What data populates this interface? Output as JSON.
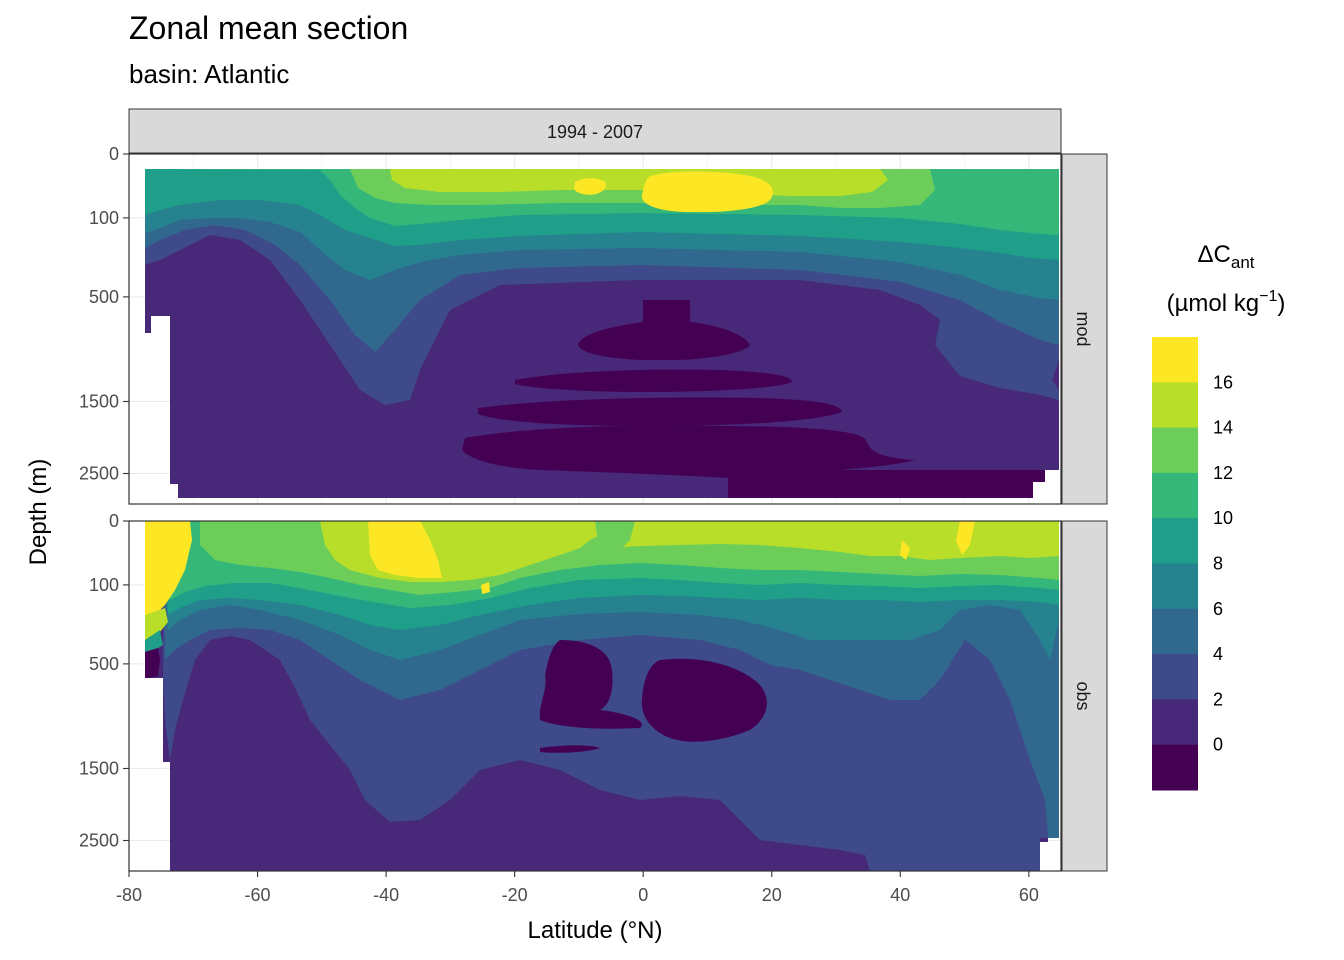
{
  "title": "Zonal mean section",
  "subtitle": "basin: Atlantic",
  "chart_data": {
    "type": "heatmap",
    "facet_column_strip": "1994 - 2007",
    "facet_row_strips": [
      "mod",
      "obs"
    ],
    "xlabel": "Latitude (°N)",
    "ylabel": "Depth (m)",
    "x_ticks": [
      -80,
      -60,
      -40,
      -20,
      0,
      20,
      40,
      60
    ],
    "y_ticks": [
      0,
      100,
      500,
      1500,
      2500
    ],
    "xlim": [
      -80,
      65
    ],
    "ylim": [
      3000,
      0
    ],
    "y_scale": "sqrt (reversed)",
    "grid": true,
    "legend": {
      "position": "right",
      "title_main": "ΔC",
      "title_sub": "ant",
      "title_units": "(µmol kg",
      "title_units_exp": "−1",
      "title_units_close": ")",
      "labels": [
        "16",
        "14",
        "12",
        "10",
        "8",
        "6",
        "4",
        "2",
        "0"
      ],
      "colors": [
        "#FDE725",
        "#B8DE29",
        "#6CCE59",
        "#35B779",
        "#1F9E89",
        "#26828E",
        "#31688E",
        "#3E4A89",
        "#482878",
        "#440154"
      ]
    },
    "panels": [
      {
        "name": "mod",
        "sections": [
          {
            "lat": -77,
            "depths": [
              [
                50,
                10
              ],
              [
                100,
                8
              ],
              [
                200,
                5
              ],
              [
                350,
                3
              ],
              [
                1000,
                2
              ],
              [
                2800,
                2
              ]
            ]
          },
          {
            "lat": -70,
            "depths": [
              [
                50,
                10
              ],
              [
                150,
                8
              ],
              [
                250,
                5
              ],
              [
                400,
                3
              ],
              [
                1500,
                2
              ],
              [
                2800,
                2
              ]
            ]
          },
          {
            "lat": -60,
            "depths": [
              [
                50,
                10
              ],
              [
                120,
                8
              ],
              [
                200,
                5
              ],
              [
                300,
                3
              ],
              [
                1500,
                2
              ],
              [
                2800,
                2
              ]
            ]
          },
          {
            "lat": -50,
            "depths": [
              [
                50,
                12
              ],
              [
                150,
                10
              ],
              [
                250,
                8
              ],
              [
                400,
                5
              ],
              [
                700,
                3
              ],
              [
                2800,
                2
              ]
            ]
          },
          {
            "lat": -40,
            "depths": [
              [
                50,
                14
              ],
              [
                150,
                12
              ],
              [
                300,
                10
              ],
              [
                600,
                8
              ],
              [
                900,
                5
              ],
              [
                1800,
                3
              ],
              [
                2800,
                2
              ]
            ]
          },
          {
            "lat": -20,
            "depths": [
              [
                50,
                16
              ],
              [
                150,
                14
              ],
              [
                300,
                12
              ],
              [
                500,
                8
              ],
              [
                700,
                5
              ],
              [
                1200,
                2
              ],
              [
                2000,
                0
              ],
              [
                2800,
                2
              ]
            ]
          },
          {
            "lat": 0,
            "depths": [
              [
                50,
                16
              ],
              [
                150,
                14
              ],
              [
                300,
                12
              ],
              [
                500,
                8
              ],
              [
                700,
                2
              ],
              [
                1500,
                0
              ],
              [
                2800,
                0
              ]
            ]
          },
          {
            "lat": 20,
            "depths": [
              [
                50,
                16
              ],
              [
                150,
                14
              ],
              [
                300,
                12
              ],
              [
                500,
                8
              ],
              [
                700,
                5
              ],
              [
                1200,
                2
              ],
              [
                2000,
                0
              ],
              [
                2800,
                2
              ]
            ]
          },
          {
            "lat": 40,
            "depths": [
              [
                50,
                14
              ],
              [
                150,
                12
              ],
              [
                300,
                10
              ],
              [
                500,
                8
              ],
              [
                800,
                5
              ],
              [
                1500,
                3
              ],
              [
                2800,
                2
              ]
            ]
          },
          {
            "lat": 60,
            "depths": [
              [
                50,
                12
              ],
              [
                150,
                10
              ],
              [
                300,
                8
              ],
              [
                600,
                5
              ],
              [
                1200,
                3
              ],
              [
                2800,
                0
              ]
            ]
          }
        ]
      },
      {
        "name": "obs",
        "sections": [
          {
            "lat": -77,
            "depths": [
              [
                10,
                18
              ],
              [
                100,
                16
              ],
              [
                250,
                12
              ],
              [
                400,
                5
              ],
              [
                600,
                2
              ],
              [
                2800,
                2
              ]
            ]
          },
          {
            "lat": -70,
            "depths": [
              [
                30,
                12
              ],
              [
                100,
                10
              ],
              [
                200,
                6
              ],
              [
                350,
                3
              ],
              [
                1500,
                2
              ],
              [
                2800,
                2
              ]
            ]
          },
          {
            "lat": -60,
            "depths": [
              [
                30,
                12
              ],
              [
                100,
                10
              ],
              [
                200,
                6
              ],
              [
                350,
                3
              ],
              [
                1500,
                2
              ],
              [
                2800,
                2
              ]
            ]
          },
          {
            "lat": -40,
            "depths": [
              [
                20,
                18
              ],
              [
                150,
                14
              ],
              [
                300,
                10
              ],
              [
                500,
                6
              ],
              [
                800,
                4
              ],
              [
                2800,
                2
              ]
            ]
          },
          {
            "lat": -20,
            "depths": [
              [
                50,
                16
              ],
              [
                200,
                14
              ],
              [
                350,
                10
              ],
              [
                500,
                6
              ],
              [
                800,
                4
              ],
              [
                1500,
                2
              ],
              [
                2800,
                2
              ]
            ]
          },
          {
            "lat": -10,
            "depths": [
              [
                50,
                16
              ],
              [
                200,
                14
              ],
              [
                350,
                10
              ],
              [
                500,
                5
              ],
              [
                700,
                0
              ],
              [
                1200,
                2
              ],
              [
                2800,
                2
              ]
            ]
          },
          {
            "lat": 0,
            "depths": [
              [
                50,
                16
              ],
              [
                200,
                14
              ],
              [
                350,
                10
              ],
              [
                500,
                6
              ],
              [
                800,
                4
              ],
              [
                1500,
                2
              ],
              [
                2800,
                2
              ]
            ]
          },
          {
            "lat": 10,
            "depths": [
              [
                50,
                16
              ],
              [
                200,
                14
              ],
              [
                350,
                10
              ],
              [
                500,
                5
              ],
              [
                700,
                0
              ],
              [
                1200,
                2
              ],
              [
                2800,
                2
              ]
            ]
          },
          {
            "lat": 30,
            "depths": [
              [
                50,
                16
              ],
              [
                150,
                14
              ],
              [
                300,
                10
              ],
              [
                500,
                6
              ],
              [
                1500,
                4
              ],
              [
                2800,
                2
              ]
            ]
          },
          {
            "lat": 60,
            "depths": [
              [
                20,
                16
              ],
              [
                100,
                14
              ],
              [
                250,
                10
              ],
              [
                500,
                8
              ],
              [
                1500,
                6
              ],
              [
                2800,
                4
              ]
            ]
          }
        ]
      }
    ]
  }
}
